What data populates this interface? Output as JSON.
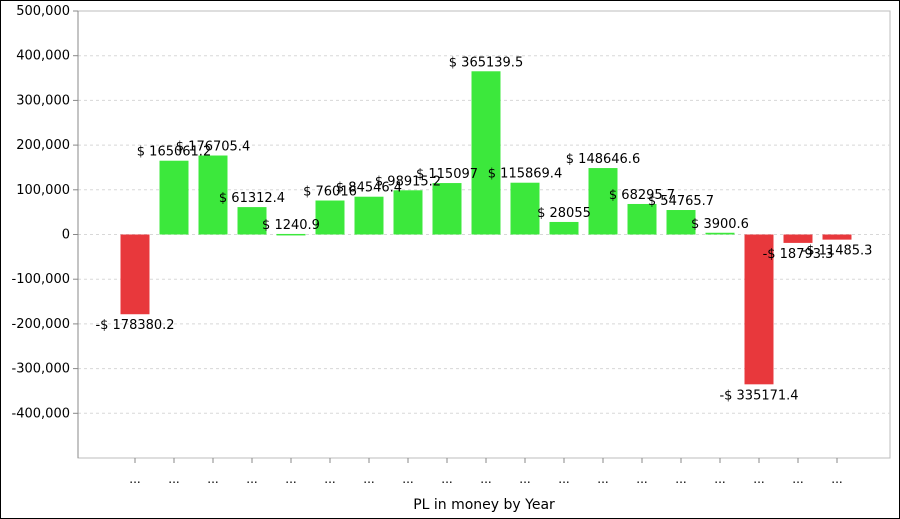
{
  "chart_data": {
    "type": "bar",
    "xlabel": "PL in money by Year",
    "ylabel": "",
    "title": "",
    "ylim": [
      -500000,
      500000
    ],
    "ytick_values": [
      500000,
      400000,
      300000,
      200000,
      100000,
      0,
      -100000,
      -200000,
      -300000,
      -400000
    ],
    "ytick_labels": [
      "500,000",
      "400,000",
      "300,000",
      "200,000",
      "100,000",
      "0",
      "-100,000",
      "-200,000",
      "-300,000",
      "-400,000"
    ],
    "grid": true,
    "legend": "none",
    "categories": [
      "...",
      "...",
      "...",
      "...",
      "...",
      "...",
      "...",
      "...",
      "...",
      "...",
      "...",
      "...",
      "...",
      "...",
      "...",
      "...",
      "...",
      "...",
      "..."
    ],
    "values": [
      -178380.2,
      165061.2,
      176705.4,
      61312.4,
      1240.9,
      76016,
      84546.4,
      98915.2,
      115097,
      365139.5,
      115869.4,
      28055,
      148646.6,
      68295.7,
      54765.7,
      3900.6,
      -335171.4,
      -18793.3,
      -11485.3
    ],
    "data_labels": [
      "-$ 178380.2",
      "$ 165061.2",
      "$ 176705.4",
      "$ 61312.4",
      "$ 1240.9",
      "$ 76016",
      "$ 84546.4",
      "$ 98915.2",
      "$ 115097",
      "$ 365139.5",
      "$ 115869.4",
      "$ 28055",
      "$ 148646.6",
      "$ 68295.7",
      "$ 54765.7",
      "$ 3900.6",
      "-$ 335171.4",
      "-$ 18793.3",
      "-$ 11485.3"
    ],
    "colors": {
      "positive": "#3ce83c",
      "negative": "#e8383c",
      "grid": "#d8d8d8",
      "axis": "#888888"
    }
  }
}
